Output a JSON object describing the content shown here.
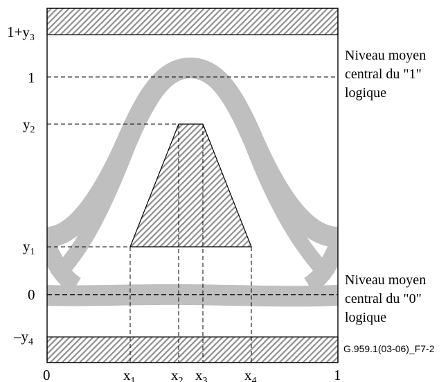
{
  "y_labels": {
    "top": {
      "main": "1+y",
      "sub": "3"
    },
    "one": {
      "main": "1",
      "sub": ""
    },
    "y2": {
      "main": "y",
      "sub": "2"
    },
    "y1": {
      "main": "y",
      "sub": "1"
    },
    "zero": {
      "main": "0",
      "sub": ""
    },
    "bottom": {
      "main": "–y",
      "sub": "4"
    }
  },
  "x_labels": {
    "zero": {
      "main": "0",
      "sub": ""
    },
    "x1": {
      "main": "x",
      "sub": "1"
    },
    "x2": {
      "main": "x",
      "sub": "2"
    },
    "x3": {
      "main": "x",
      "sub": "3"
    },
    "x4": {
      "main": "x",
      "sub": "4"
    },
    "one": {
      "main": "1",
      "sub": ""
    }
  },
  "annotations": {
    "level_one": [
      "Niveau moyen",
      "central du \"1\"",
      "logique"
    ],
    "level_zero": [
      "Niveau moyen",
      "central du \"0\"",
      "logique"
    ]
  },
  "figure_code": "G.959.1(03-06)_F7-2",
  "colors": {
    "eye_band": "#bfbfbf",
    "hatch_fill": "#9a9a9a",
    "stroke": "#000000"
  }
}
